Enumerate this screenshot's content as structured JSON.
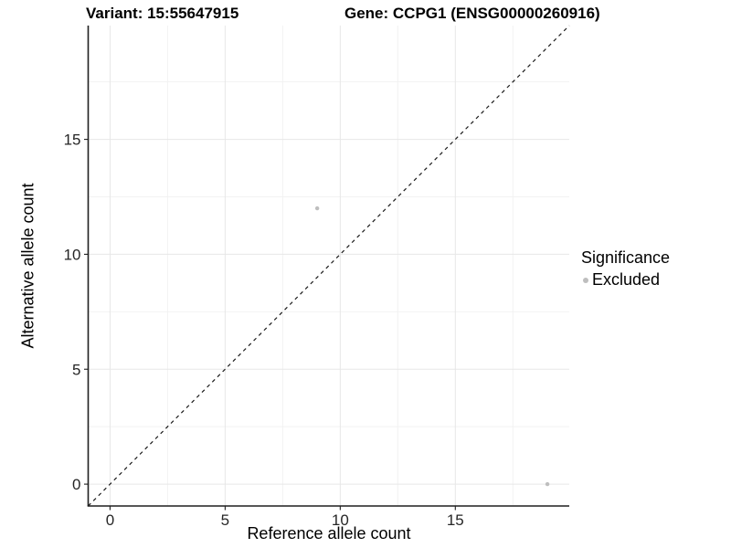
{
  "chart_data": {
    "type": "scatter",
    "titles": {
      "left": "Variant: 15:55647915",
      "right": "Gene: CCPG1 (ENSG00000260916)"
    },
    "xlabel": "Reference allele count",
    "ylabel": "Alternative allele count",
    "xlim": [
      -0.95,
      19.95
    ],
    "ylim": [
      -0.95,
      19.95
    ],
    "x_ticks": [
      0,
      5,
      10,
      15
    ],
    "y_ticks": [
      0,
      5,
      10,
      15
    ],
    "x_minor_ticks": [
      2.5,
      7.5,
      12.5,
      17.5
    ],
    "y_minor_ticks": [
      2.5,
      7.5,
      12.5,
      17.5
    ],
    "grid": "major and minor gridlines, white background",
    "reference_line": {
      "style": "dashed",
      "slope": 1,
      "intercept": 0
    },
    "series": [
      {
        "name": "Excluded",
        "color": "#bebebe",
        "point_radius": 2.2,
        "points": [
          [
            9,
            12
          ],
          [
            19,
            0
          ]
        ]
      }
    ],
    "legend": {
      "title": "Significance",
      "position": "right",
      "items": [
        {
          "label": "Excluded",
          "color": "#bebebe"
        }
      ]
    },
    "colors": {
      "background": "#ffffff",
      "grid_major": "#e7e7e7",
      "grid_minor": "#f2f2f2",
      "axis_line": "#1f1f1f",
      "tick_label": "#262626",
      "reference_line": "#1a1a1a"
    }
  }
}
